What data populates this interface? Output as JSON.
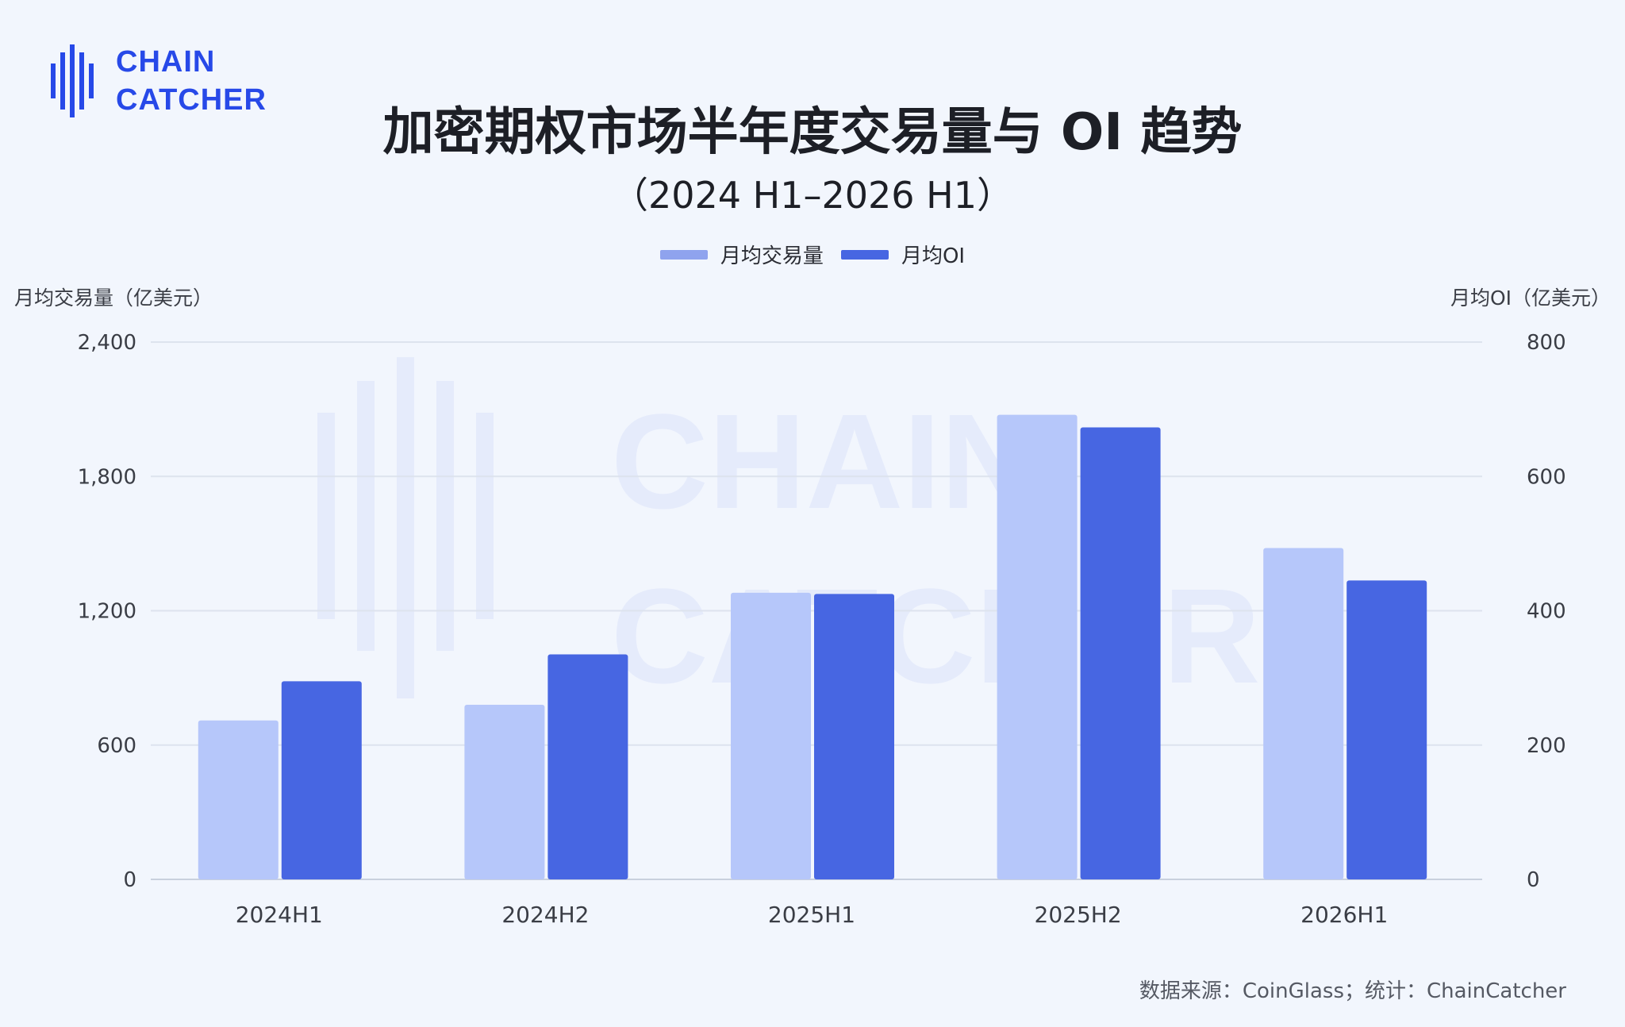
{
  "brand": {
    "line1": "CHAIN",
    "line2": "CATCHER",
    "color": "#2749e8"
  },
  "title": "加密期权市场半年度交易量与 OI 趋势",
  "subtitle": "（2024 H1–2026 H1）",
  "source": "数据来源：CoinGlass；统计：ChainCatcher",
  "chart_data": {
    "type": "bar",
    "categories": [
      "2024H1",
      "2024H2",
      "2025H1",
      "2025H2",
      "2026H1"
    ],
    "series": [
      {
        "name": "月均交易量",
        "axis": "left",
        "color": "#b6c7fa",
        "values": [
          710,
          780,
          1280,
          2075,
          1480
        ]
      },
      {
        "name": "月均OI",
        "axis": "right",
        "color": "#4766e2",
        "values": [
          295,
          335,
          425,
          673,
          445
        ]
      }
    ],
    "ylabel_left": "月均交易量（亿美元）",
    "ylabel_right": "月均OI（亿美元）",
    "ylim_left": [
      0,
      2400
    ],
    "ylim_right": [
      0,
      800
    ],
    "yticks_left": [
      "0",
      "600",
      "1,200",
      "1,800",
      "2,400"
    ],
    "yticks_right": [
      "0",
      "200",
      "400",
      "600",
      "800"
    ],
    "grid": true,
    "legend": "top-center"
  }
}
